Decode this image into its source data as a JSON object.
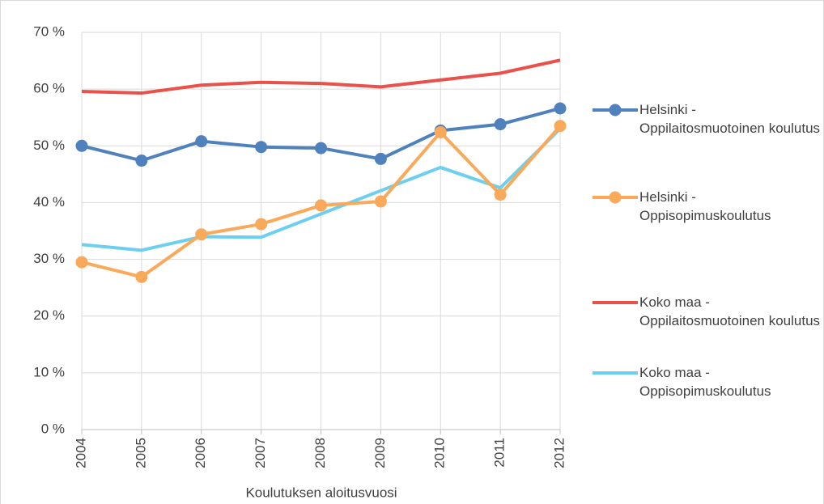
{
  "chart_data": {
    "type": "line",
    "x_label": "Koulutuksen aloitusvuosi",
    "categories": [
      "2004",
      "2005",
      "2006",
      "2007",
      "2008",
      "2009",
      "2010",
      "2011",
      "2012"
    ],
    "series": [
      {
        "name": "Helsinki - Oppilaitosmuotoinen koulutus",
        "color": "#4f81bd",
        "marker": "circle",
        "values": [
          50.0,
          47.4,
          50.8,
          49.8,
          49.6,
          47.7,
          52.7,
          53.8,
          56.6
        ]
      },
      {
        "name": "Helsinki - Oppisopimuskoulutus",
        "color": "#f9a95a",
        "marker": "circle",
        "values": [
          29.5,
          26.9,
          34.4,
          36.2,
          39.5,
          40.2,
          52.4,
          41.4,
          53.5
        ]
      },
      {
        "name": "Koko maa - Oppilaitosmuotoinen koulutus",
        "color": "#e8524a",
        "values": [
          59.6,
          59.3,
          60.7,
          61.2,
          61.0,
          60.4,
          61.6,
          62.8,
          65.1
        ]
      },
      {
        "name": "Koko maa - Oppisopimuskoulutus",
        "color": "#6dcff0",
        "values": [
          32.6,
          31.6,
          34.0,
          33.9,
          38.0,
          42.1,
          46.2,
          42.6,
          53.0
        ]
      }
    ],
    "ylim": [
      0,
      70
    ],
    "yticks": [
      {
        "value": 0,
        "label": "0 %"
      },
      {
        "value": 10,
        "label": "10 %"
      },
      {
        "value": 20,
        "label": "20 %"
      },
      {
        "value": 30,
        "label": "30 %"
      },
      {
        "value": 40,
        "label": "40 %"
      },
      {
        "value": 50,
        "label": "50 %"
      },
      {
        "value": 60,
        "label": "60 %"
      },
      {
        "value": 70,
        "label": "70 %"
      }
    ],
    "grid": true,
    "legend": "right"
  }
}
